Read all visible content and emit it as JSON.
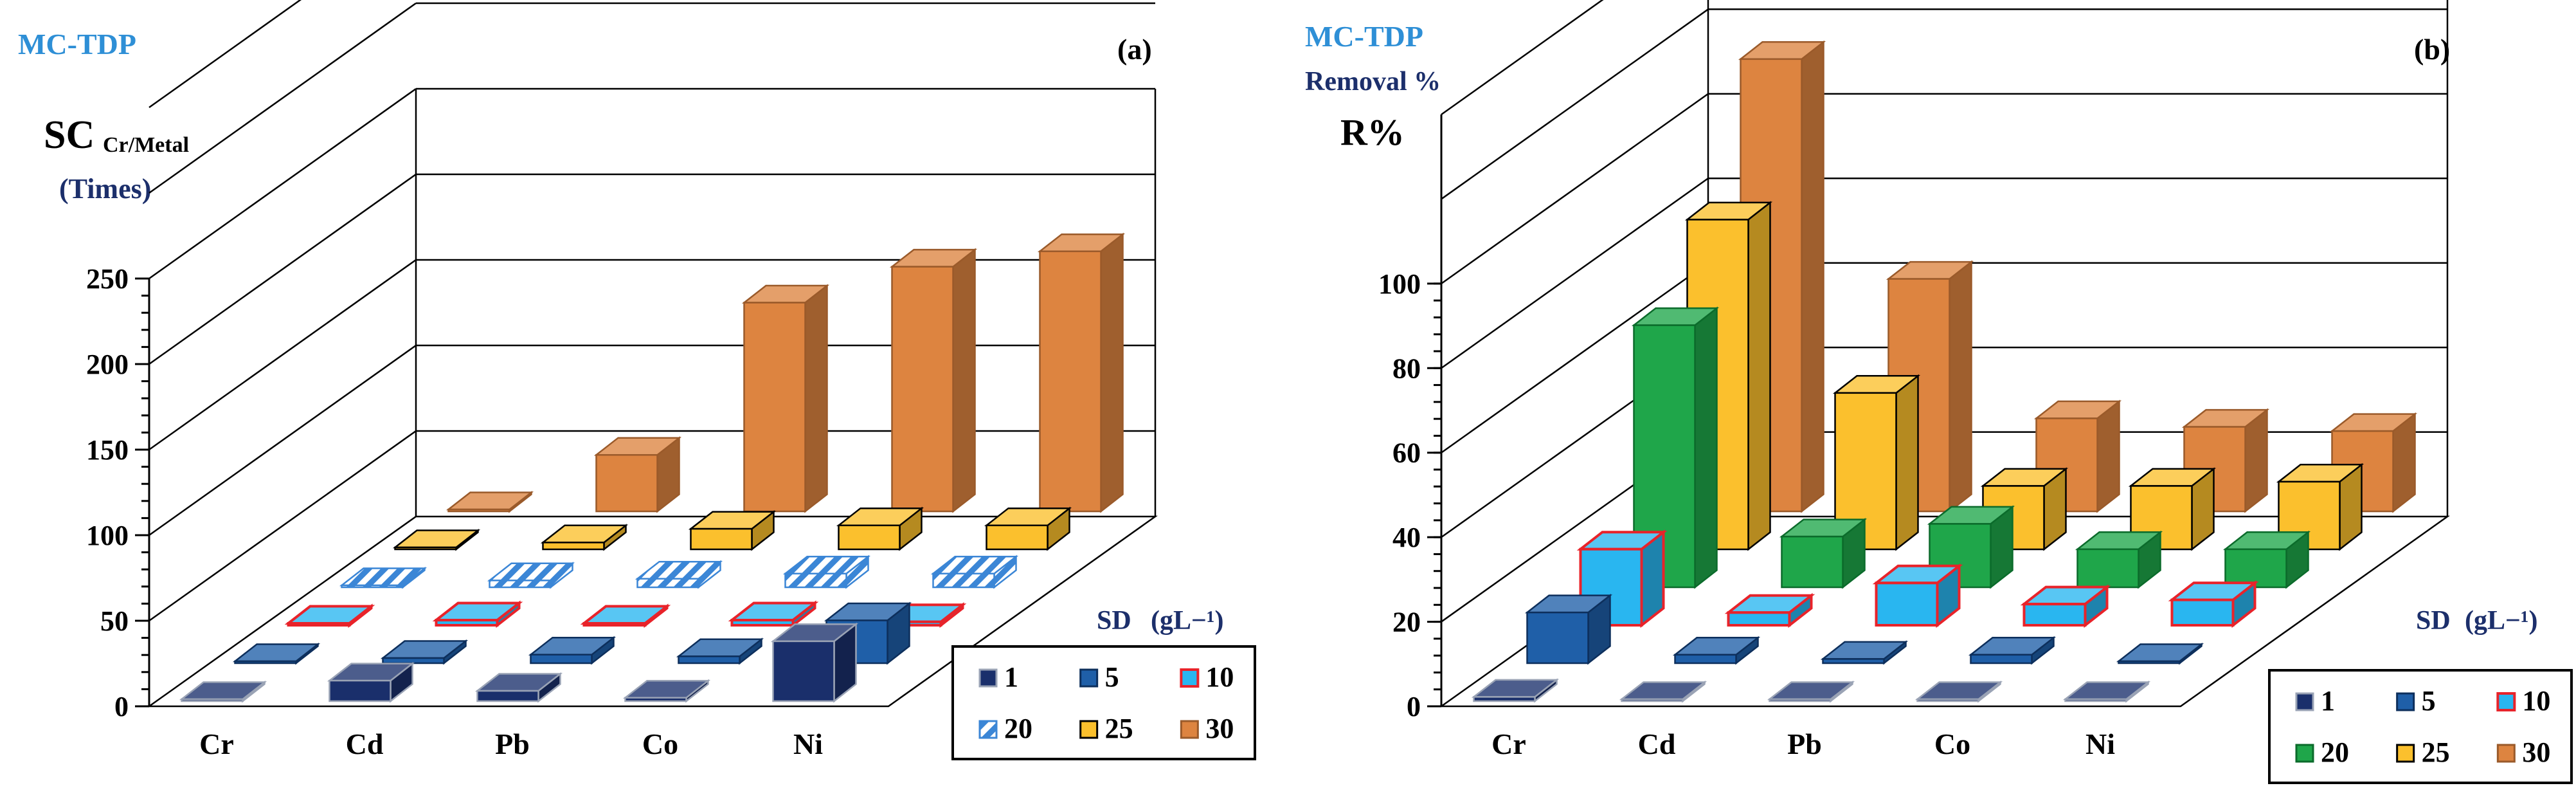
{
  "panels": [
    {
      "id": "a",
      "label": "(a)",
      "method": "MC-TDP",
      "extra_label": "",
      "ylabel_main": "SC",
      "ylabel_sub": "Cr/Metal",
      "ylabel_unit": "(Times)",
      "legend_title": "SD",
      "legend_unit": "(gL−¹)",
      "legend": [
        "1",
        "5",
        "10",
        "20",
        "25",
        "30"
      ]
    },
    {
      "id": "b",
      "label": "(b)",
      "method": "MC-TDP",
      "extra_label": "Removal %",
      "ylabel_main": "R%",
      "ylabel_sub": "",
      "ylabel_unit": "",
      "legend_title": "SD",
      "legend_unit": "(gL−¹)",
      "legend": [
        "1",
        "5",
        "10",
        "20",
        "25",
        "30"
      ]
    }
  ],
  "colors": {
    "sd1": "#1a2f6b",
    "sd5": "#1f5fa8",
    "sd10": "#29b6f0",
    "sd10_edge": "#e8232a",
    "sd20_a": "#3b86d6",
    "sd20_b": "#1fa64a",
    "sd25": "#fbc02d",
    "sd30": "#dd8440",
    "title_blue": "#2e8fd6",
    "label_navy": "#1c2f6b"
  },
  "chart_data": [
    {
      "type": "bar",
      "subtype": "3d-column",
      "panel": "(a)",
      "title": "MC-TDP",
      "ylabel": "SC Cr/Metal (Times)",
      "xlabel": "",
      "ylim": [
        0,
        250
      ],
      "yticks": [
        0,
        50,
        100,
        150,
        200,
        250
      ],
      "categories": [
        "Cr",
        "Cd",
        "Pb",
        "Co",
        "Ni"
      ],
      "legend_title": "SD (gL−¹)",
      "series": [
        {
          "name": "1",
          "values": [
            0,
            12,
            6,
            2,
            35
          ]
        },
        {
          "name": "5",
          "values": [
            0,
            3,
            5,
            4,
            25
          ]
        },
        {
          "name": "10",
          "values": [
            0,
            3,
            0,
            3,
            2
          ]
        },
        {
          "name": "20",
          "values": [
            0,
            4,
            5,
            8,
            8
          ]
        },
        {
          "name": "25",
          "values": [
            0,
            4,
            12,
            14,
            14
          ]
        },
        {
          "name": "30",
          "values": [
            0,
            33,
            122,
            143,
            152
          ]
        }
      ]
    },
    {
      "type": "bar",
      "subtype": "3d-column",
      "panel": "(b)",
      "title": "MC-TDP Removal %",
      "ylabel": "R%",
      "xlabel": "",
      "ylim": [
        0,
        140
      ],
      "yticks": [
        0,
        20,
        40,
        60,
        80,
        100
      ],
      "categories": [
        "Cr",
        "Cd",
        "Pb",
        "Co",
        "Ni"
      ],
      "legend_title": "SD (gL−¹)",
      "series": [
        {
          "name": "1",
          "values": [
            1,
            0,
            0,
            0,
            0
          ]
        },
        {
          "name": "5",
          "values": [
            12,
            2,
            1,
            2,
            0
          ]
        },
        {
          "name": "10",
          "values": [
            18,
            3,
            10,
            5,
            6
          ]
        },
        {
          "name": "20",
          "values": [
            62,
            12,
            15,
            9,
            9
          ]
        },
        {
          "name": "25",
          "values": [
            78,
            37,
            15,
            15,
            16
          ]
        },
        {
          "name": "30",
          "values": [
            107,
            55,
            22,
            20,
            19
          ]
        }
      ]
    }
  ]
}
